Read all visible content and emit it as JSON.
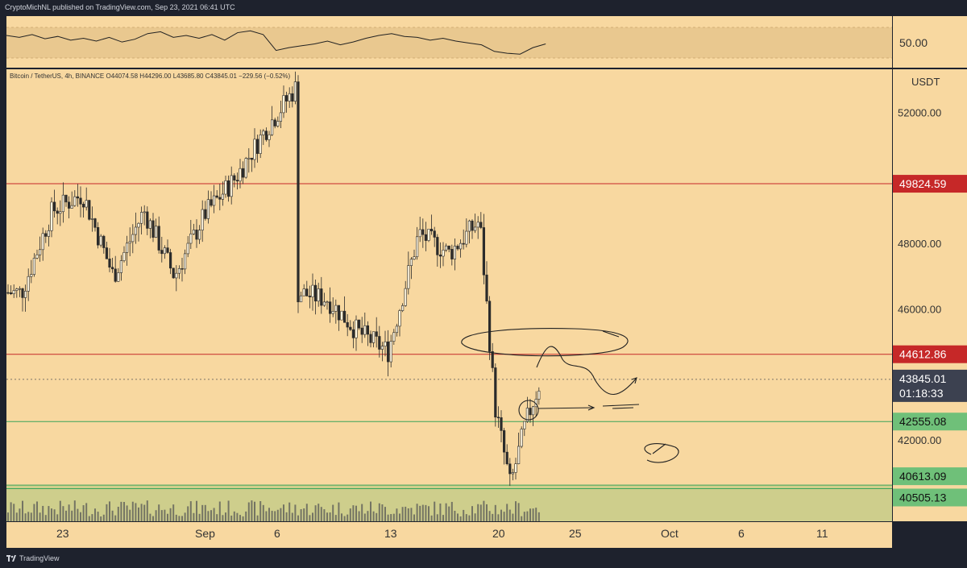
{
  "header": {
    "publisher_text": "CryptoMichNL published on TradingView.com, Sep 23, 2021 06:41 UTC"
  },
  "legend": {
    "symbol": "Bitcoin / TetherUS, 4h, BINANCE",
    "open": "O44074.58",
    "high": "H44296.00",
    "low": "L43685.80",
    "close": "C43845.01",
    "change": "−229.56 (−0.52%)"
  },
  "footer": {
    "brand": "TradingView"
  },
  "colors": {
    "background": "#f8d8a0",
    "candle": "#2b2b2b",
    "resistance": "#c62828",
    "support": "#3aa45a",
    "rsi_band": "#e9c88f",
    "volume_zone": "#c9cd8a"
  },
  "chart_data": {
    "type": "line",
    "title": "",
    "currency": "USDT",
    "ylim": [
      40000,
      53200
    ],
    "y_ticks": [
      {
        "value": 52000,
        "label": "52000.00"
      },
      {
        "value": 48000,
        "label": "48000.00"
      },
      {
        "value": 46000,
        "label": "46000.00"
      },
      {
        "value": 42000,
        "label": "42000.00"
      }
    ],
    "x_ticks": [
      "23",
      "Sep",
      "6",
      "13",
      "20",
      "25",
      "Oct",
      "6",
      "11"
    ],
    "series": [
      {
        "type": "close",
        "x": [
          "2021-08-20",
          "2021-08-22",
          "2021-08-24",
          "2021-08-26",
          "2021-08-28",
          "2021-08-30",
          "2021-09-01",
          "2021-09-03",
          "2021-09-05",
          "2021-09-07",
          "2021-09-07",
          "2021-09-09",
          "2021-09-11",
          "2021-09-13",
          "2021-09-15",
          "2021-09-17",
          "2021-09-19",
          "2021-09-20",
          "2021-09-21",
          "2021-09-22",
          "2021-09-23"
        ],
        "values": [
          46500,
          49000,
          49500,
          47000,
          49000,
          47000,
          48900,
          50000,
          51500,
          52800,
          46500,
          46300,
          45300,
          44700,
          48300,
          47700,
          48700,
          43000,
          40600,
          42500,
          43845
        ]
      }
    ],
    "horizontal_lines": [
      {
        "value": 49824.59,
        "label": "49824.59",
        "kind": "resistance"
      },
      {
        "value": 44612.86,
        "label": "44612.86",
        "kind": "resistance"
      },
      {
        "value": 42555.08,
        "label": "42555.08",
        "kind": "support"
      },
      {
        "value": 40613.09,
        "label": "40613.09",
        "kind": "support"
      },
      {
        "value": 40505.13,
        "label": "40505.13",
        "kind": "support"
      }
    ],
    "last_price": {
      "value": 43845.01,
      "label": "43845.01",
      "countdown": "01:18:33"
    },
    "rsi": {
      "label": "50.00",
      "values": [
        62,
        58,
        64,
        55,
        60,
        52,
        56,
        50,
        58,
        48,
        54,
        66,
        70,
        58,
        62,
        56,
        64,
        52,
        68,
        72,
        64,
        30,
        36,
        40,
        44,
        50,
        42,
        48,
        56,
        62,
        66,
        60,
        58,
        52,
        56,
        50,
        46,
        42,
        28,
        24,
        22,
        36,
        44
      ]
    }
  }
}
